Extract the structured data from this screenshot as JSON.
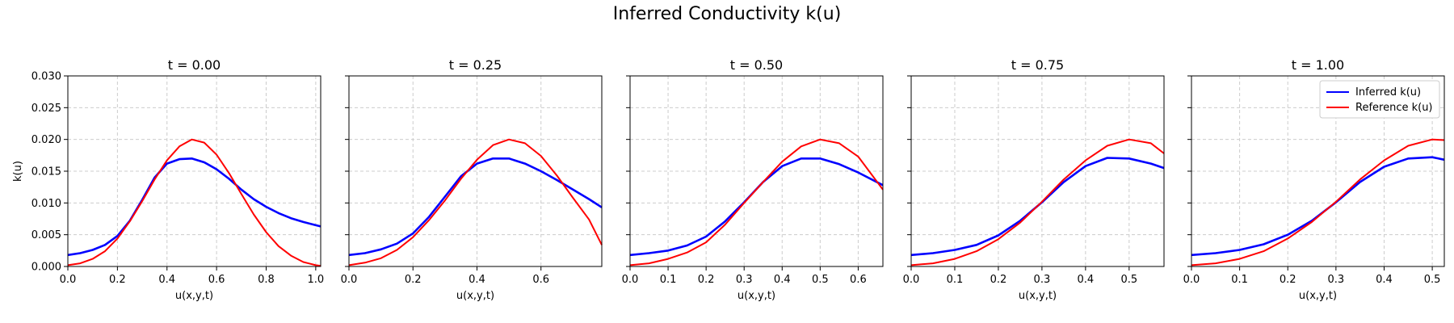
{
  "figure": {
    "title": "Inferred Conductivity k(u)"
  },
  "colors": {
    "inferred": "#0000ff",
    "reference": "#ff0000",
    "grid": "#cccccc"
  },
  "legend": {
    "placement": "upper-right",
    "panel": 4,
    "inferred": "Inferred k(u)",
    "reference": "Reference k(u)"
  },
  "chart_data": [
    {
      "type": "line",
      "title": "t = 0.00",
      "xlabel": "u(x,y,t)",
      "ylabel": "k(u)",
      "xlim": [
        0,
        1.02
      ],
      "ylim": [
        0,
        0.03
      ],
      "grid": true,
      "xticks": [
        "0.0",
        "0.2",
        "0.4",
        "0.6",
        "0.8",
        "1.0"
      ],
      "yticks": [
        "0.000",
        "0.005",
        "0.010",
        "0.015",
        "0.020",
        "0.025",
        "0.030"
      ],
      "series": [
        {
          "name": "Inferred k(u)",
          "x": [
            0,
            0.05,
            0.1,
            0.15,
            0.2,
            0.25,
            0.3,
            0.35,
            0.4,
            0.45,
            0.5,
            0.55,
            0.6,
            0.65,
            0.7,
            0.75,
            0.8,
            0.85,
            0.9,
            0.95,
            1.0,
            1.02
          ],
          "y": [
            0.0018,
            0.0021,
            0.0026,
            0.0034,
            0.0048,
            0.0072,
            0.0105,
            0.014,
            0.0162,
            0.0169,
            0.017,
            0.0164,
            0.0153,
            0.0138,
            0.0121,
            0.0106,
            0.0094,
            0.0084,
            0.0076,
            0.007,
            0.0065,
            0.0063
          ]
        },
        {
          "name": "Reference k(u)",
          "x": [
            0,
            0.05,
            0.1,
            0.15,
            0.2,
            0.25,
            0.3,
            0.35,
            0.4,
            0.45,
            0.5,
            0.55,
            0.6,
            0.65,
            0.7,
            0.75,
            0.8,
            0.85,
            0.9,
            0.95,
            1.0,
            1.02
          ],
          "y": [
            0.0002,
            0.0005,
            0.0012,
            0.0024,
            0.0044,
            0.0071,
            0.0103,
            0.0137,
            0.0167,
            0.0189,
            0.02,
            0.0195,
            0.0176,
            0.0147,
            0.0114,
            0.0082,
            0.0054,
            0.0032,
            0.0017,
            0.0007,
            0.0002,
            0.0001
          ]
        }
      ]
    },
    {
      "type": "line",
      "title": "t = 0.25",
      "xlabel": "u(x,y,t)",
      "ylabel": "",
      "xlim": [
        0,
        0.79
      ],
      "ylim": [
        0,
        0.03
      ],
      "grid": true,
      "xticks": [
        "0.0",
        "0.2",
        "0.4",
        "0.6"
      ],
      "yticks": [],
      "series": [
        {
          "name": "Inferred k(u)",
          "x": [
            0,
            0.05,
            0.1,
            0.15,
            0.2,
            0.25,
            0.3,
            0.35,
            0.4,
            0.45,
            0.5,
            0.55,
            0.6,
            0.65,
            0.7,
            0.75,
            0.79
          ],
          "y": [
            0.0018,
            0.0021,
            0.0027,
            0.0036,
            0.0052,
            0.0078,
            0.011,
            0.0142,
            0.0162,
            0.017,
            0.017,
            0.0162,
            0.015,
            0.0136,
            0.0121,
            0.0106,
            0.0093
          ]
        },
        {
          "name": "Reference k(u)",
          "x": [
            0,
            0.05,
            0.1,
            0.15,
            0.2,
            0.25,
            0.3,
            0.35,
            0.4,
            0.45,
            0.5,
            0.55,
            0.6,
            0.65,
            0.7,
            0.75,
            0.79
          ],
          "y": [
            0.0002,
            0.0006,
            0.0013,
            0.0026,
            0.0046,
            0.0073,
            0.0104,
            0.0138,
            0.0168,
            0.0191,
            0.02,
            0.0194,
            0.0174,
            0.0143,
            0.0108,
            0.0074,
            0.0034
          ]
        }
      ]
    },
    {
      "type": "line",
      "title": "t = 0.50",
      "xlabel": "u(x,y,t)",
      "ylabel": "",
      "xlim": [
        0,
        0.665
      ],
      "ylim": [
        0,
        0.03
      ],
      "grid": true,
      "xticks": [
        "0.0",
        "0.1",
        "0.2",
        "0.3",
        "0.4",
        "0.5",
        "0.6"
      ],
      "yticks": [],
      "series": [
        {
          "name": "Inferred k(u)",
          "x": [
            0,
            0.05,
            0.1,
            0.15,
            0.2,
            0.25,
            0.3,
            0.35,
            0.4,
            0.45,
            0.5,
            0.55,
            0.6,
            0.665
          ],
          "y": [
            0.0018,
            0.0021,
            0.0025,
            0.0033,
            0.0047,
            0.0071,
            0.0101,
            0.0133,
            0.0158,
            0.017,
            0.017,
            0.0161,
            0.0148,
            0.0128
          ]
        },
        {
          "name": "Reference k(u)",
          "x": [
            0,
            0.05,
            0.1,
            0.15,
            0.2,
            0.25,
            0.3,
            0.35,
            0.4,
            0.45,
            0.5,
            0.55,
            0.6,
            0.665
          ],
          "y": [
            0.0002,
            0.0005,
            0.0012,
            0.0022,
            0.0038,
            0.0066,
            0.01,
            0.0133,
            0.0165,
            0.0189,
            0.02,
            0.0194,
            0.0173,
            0.0121
          ]
        }
      ]
    },
    {
      "type": "line",
      "title": "t = 0.75",
      "xlabel": "u(x,y,t)",
      "ylabel": "",
      "xlim": [
        0,
        0.58
      ],
      "ylim": [
        0,
        0.03
      ],
      "grid": true,
      "xticks": [
        "0.0",
        "0.1",
        "0.2",
        "0.3",
        "0.4",
        "0.5"
      ],
      "yticks": [],
      "series": [
        {
          "name": "Inferred k(u)",
          "x": [
            0,
            0.05,
            0.1,
            0.15,
            0.2,
            0.25,
            0.3,
            0.35,
            0.4,
            0.45,
            0.5,
            0.55,
            0.58
          ],
          "y": [
            0.0018,
            0.0021,
            0.0026,
            0.0034,
            0.0049,
            0.0072,
            0.0101,
            0.0133,
            0.0158,
            0.0171,
            0.017,
            0.0162,
            0.0155
          ]
        },
        {
          "name": "Reference k(u)",
          "x": [
            0,
            0.05,
            0.1,
            0.15,
            0.2,
            0.25,
            0.3,
            0.35,
            0.4,
            0.45,
            0.5,
            0.55,
            0.58
          ],
          "y": [
            0.0002,
            0.0005,
            0.0012,
            0.0024,
            0.0043,
            0.0069,
            0.0102,
            0.0137,
            0.0167,
            0.019,
            0.02,
            0.0194,
            0.0178
          ]
        }
      ]
    },
    {
      "type": "line",
      "title": "t = 1.00",
      "xlabel": "u(x,y,t)",
      "ylabel": "",
      "xlim": [
        0,
        0.525
      ],
      "ylim": [
        0,
        0.03
      ],
      "grid": true,
      "xticks": [
        "0.0",
        "0.1",
        "0.2",
        "0.3",
        "0.4",
        "0.5"
      ],
      "yticks": [],
      "series": [
        {
          "name": "Inferred k(u)",
          "x": [
            0,
            0.05,
            0.1,
            0.15,
            0.2,
            0.25,
            0.3,
            0.35,
            0.4,
            0.45,
            0.5,
            0.525
          ],
          "y": [
            0.0018,
            0.0021,
            0.0026,
            0.0035,
            0.005,
            0.0072,
            0.0101,
            0.0133,
            0.0157,
            0.017,
            0.0172,
            0.0168
          ]
        },
        {
          "name": "Reference k(u)",
          "x": [
            0,
            0.05,
            0.1,
            0.15,
            0.2,
            0.25,
            0.3,
            0.35,
            0.4,
            0.45,
            0.5,
            0.525
          ],
          "y": [
            0.0002,
            0.0005,
            0.0012,
            0.0024,
            0.0044,
            0.007,
            0.0102,
            0.0137,
            0.0167,
            0.019,
            0.02,
            0.0199
          ]
        }
      ]
    }
  ]
}
